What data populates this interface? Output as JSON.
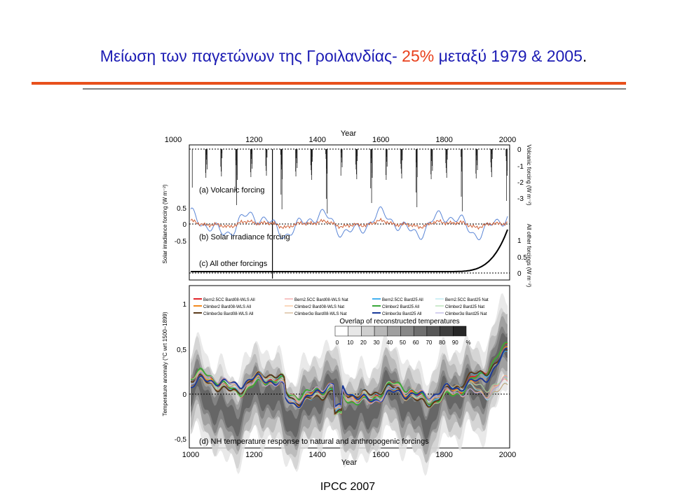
{
  "header": {
    "title": {
      "part1": "Μείωση των παγετώνων της Γροιλανδίας- ",
      "highlight": "25%",
      "part2": " μεταξύ 1979 & 2005",
      "end": "."
    }
  },
  "figure": {
    "top_axis": {
      "title": "Year",
      "ticks": [
        "1000",
        "1200",
        "1400",
        "1600",
        "1800",
        "2000"
      ]
    },
    "panel_labels": [
      "(a) Volcanic forcing",
      "(b) Solar irradiance forcing",
      "(c) All other forcings",
      "(d) NH temperature response to natural and anthropogenic forcings"
    ],
    "axis_titles": {
      "solar": "Solar irradiance forcing (W m⁻²)",
      "volcanic": "Volcanic forcing (W m⁻²)",
      "other": "All other forcings (W m⁻²)",
      "temperature": "Temperature anomaly (°C wrt 1500–1899)",
      "year": "Year"
    },
    "volcanic_ticks": [
      "0",
      "-1",
      "-2",
      "-3"
    ],
    "solar_ticks": [
      "0.5",
      "0",
      "-0.5"
    ],
    "other_ticks": [
      "1",
      "0.5",
      "0"
    ],
    "temperature_ticks": [
      "1",
      "0,5",
      "0",
      "-0,5"
    ],
    "bottom_axis_ticks": [
      "1000",
      "1200",
      "1400",
      "1600",
      "1800",
      "2000"
    ],
    "legend": [
      "Bern2.5CC Bard08-WLS All",
      "Bern2.5CC Bard08-WLS Nat",
      "Bern2.5CC Bard25 All",
      "Bern2.5CC Bard25 Nat",
      "Climber2 Bard08-WLS All",
      "Climber2 Bard08-WLS Nat",
      "Climber2 Bard25 All",
      "Climber2 Bard25 Nat",
      "Climber3α Bard08-WLS All",
      "Climber3α Bard08-WLS Nat",
      "Climber3α Bard25 All",
      "Climber3α Bard25 Nat"
    ],
    "overlap": {
      "title": "Overlap of reconstructed temperatures",
      "labels": [
        "0",
        "10",
        "20",
        "30",
        "40",
        "50",
        "60",
        "70",
        "80",
        "90",
        "%"
      ]
    }
  },
  "footer": {
    "source": "IPCC 2007"
  }
}
